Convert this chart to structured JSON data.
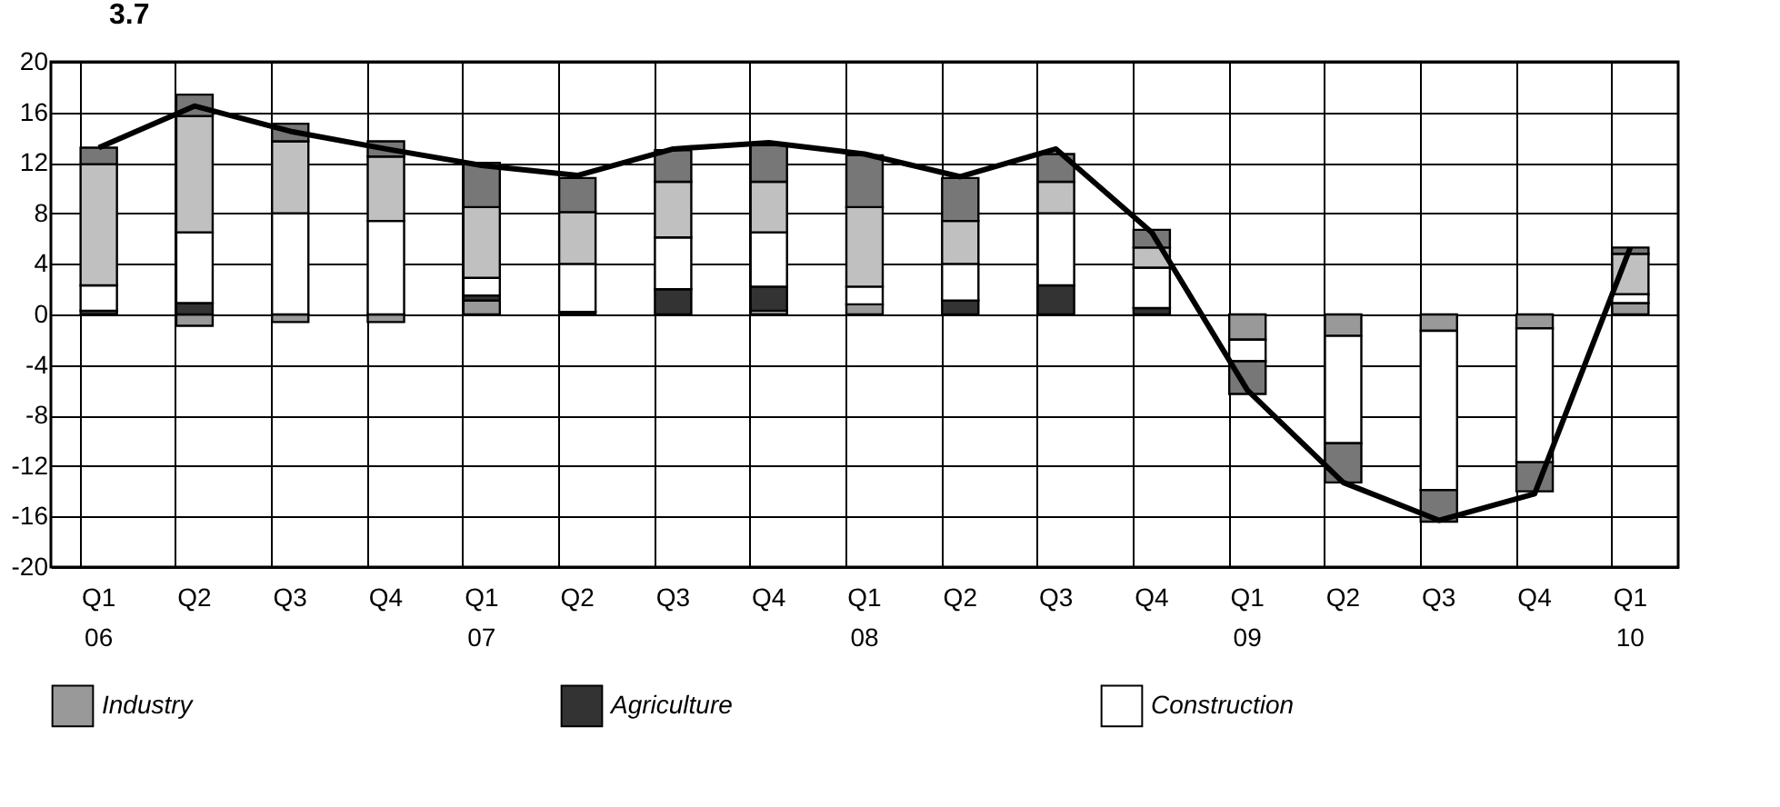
{
  "chart_data": {
    "type": "bar",
    "stacked": true,
    "categories": [
      "Q1 06",
      "Q2",
      "Q3",
      "Q4",
      "Q1 07",
      "Q2",
      "Q3",
      "Q4",
      "Q1 08",
      "Q2",
      "Q3",
      "Q4",
      "Q1 09",
      "Q2",
      "Q3",
      "Q4",
      "Q1 10"
    ],
    "series": [
      {
        "name": "Industry",
        "color": "#999999",
        "values": [
          null,
          -0.9,
          -0.6,
          -0.6,
          1.1,
          null,
          null,
          0.3,
          0.8,
          null,
          null,
          null,
          -2.0,
          -1.7,
          -1.3,
          -1.1,
          0.9
        ]
      },
      {
        "name": "Agriculture",
        "color": "#333333",
        "values": [
          0.3,
          0.9,
          null,
          null,
          0.4,
          0.2,
          2.0,
          1.9,
          null,
          1.1,
          2.3,
          0.5,
          null,
          null,
          null,
          null,
          null
        ]
      },
      {
        "name": "Construction",
        "color": "#ffffff",
        "values": [
          2.0,
          5.6,
          8.0,
          7.4,
          1.4,
          3.8,
          4.1,
          4.3,
          1.4,
          2.9,
          5.7,
          3.2,
          -1.7,
          -8.5,
          -12.6,
          -10.6,
          0.7
        ]
      },
      {
        "color": "#c0c0c0",
        "values": [
          9.6,
          9.2,
          5.7,
          5.1,
          5.6,
          4.1,
          4.4,
          4.0,
          6.3,
          3.4,
          2.5,
          1.6,
          null,
          null,
          null,
          null,
          3.2
        ]
      },
      {
        "color": "#777777",
        "values": [
          1.3,
          1.7,
          1.4,
          1.2,
          3.5,
          2.7,
          2.5,
          2.9,
          4.1,
          3.4,
          2.2,
          1.4,
          -2.6,
          -3.1,
          -2.5,
          -2.3,
          0.5
        ]
      },
      {
        "type": "line",
        "color": "#000000",
        "values": [
          13.2,
          16.5,
          14.5,
          13.1,
          11.8,
          11.0,
          13.1,
          13.6,
          12.7,
          10.9,
          13.1,
          6.5,
          -6.0,
          -13.3,
          -16.3,
          -14.2,
          5.3
        ]
      }
    ],
    "ylim": [
      -20,
      20
    ],
    "yticks": [
      -20,
      -16,
      -12,
      -8,
      -4,
      0,
      4,
      8,
      12,
      16,
      20
    ],
    "grid": true,
    "legend": "bottom",
    "marker": "none",
    "annotations": [
      "3.7"
    ]
  }
}
